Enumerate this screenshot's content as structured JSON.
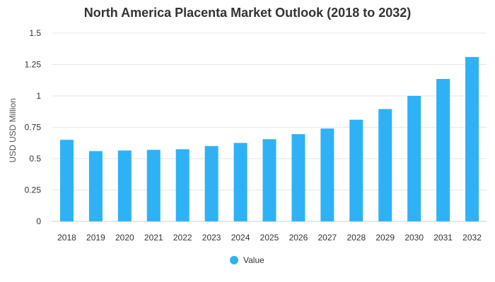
{
  "chart_data": {
    "type": "bar",
    "title": "North America Placenta Market Outlook (2018 to 2032)",
    "xlabel": "",
    "ylabel": "USD USD Million",
    "ylim": [
      0,
      1.5
    ],
    "yticks": [
      0,
      0.25,
      0.5,
      0.75,
      1,
      1.25,
      1.5
    ],
    "ytick_labels": [
      "0",
      "0.25",
      "0.5",
      "0.75",
      "1",
      "1.25",
      "1.5"
    ],
    "grid": true,
    "legend_position": "bottom-center",
    "categories": [
      "2018",
      "2019",
      "2020",
      "2021",
      "2022",
      "2023",
      "2024",
      "2025",
      "2026",
      "2027",
      "2028",
      "2029",
      "2030",
      "2031",
      "2032"
    ],
    "series": [
      {
        "name": "Value",
        "color": "#2eb2f5",
        "values": [
          0.65,
          0.56,
          0.565,
          0.57,
          0.575,
          0.6,
          0.625,
          0.655,
          0.695,
          0.74,
          0.81,
          0.895,
          1.0,
          1.135,
          1.31
        ]
      }
    ]
  }
}
